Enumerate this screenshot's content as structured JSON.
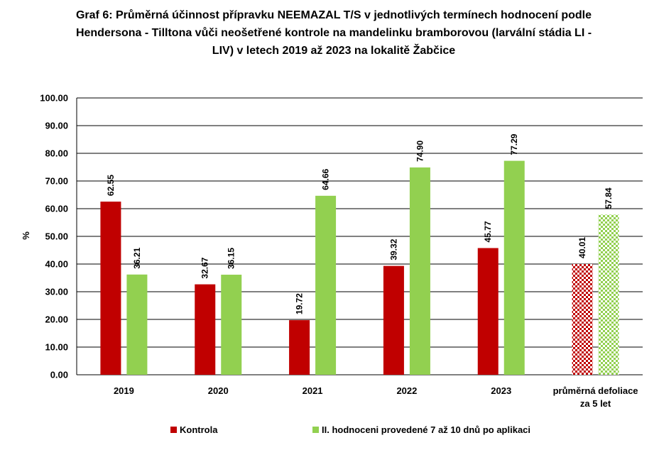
{
  "chart_data": {
    "type": "bar",
    "title_lines": [
      "Graf 6: Průměrná účinnost přípravku NEEMAZAL T/S v jednotlivých termínech hodnocení podle",
      "Hendersona - Tilltona vůči neošetřené kontrole na mandelinku bramborovou (larvální stádia LI -",
      "LIV) v letech 2019 až 2023 na lokalitě Žabčice"
    ],
    "ylabel": "%",
    "xlabel": "",
    "ylim": [
      0,
      100
    ],
    "yticks": [
      "0.00",
      "10.00",
      "20.00",
      "30.00",
      "40.00",
      "50.00",
      "60.00",
      "70.00",
      "80.00",
      "90.00",
      "100.00"
    ],
    "grid": true,
    "legend_position": "bottom",
    "categories": [
      {
        "lines": [
          "2019"
        ]
      },
      {
        "lines": [
          "2020"
        ]
      },
      {
        "lines": [
          "2021"
        ]
      },
      {
        "lines": [
          "2022"
        ]
      },
      {
        "lines": [
          "2023"
        ]
      },
      {
        "lines": [
          "průměrná defoliace",
          "za 5 let"
        ]
      }
    ],
    "series": [
      {
        "name": "Kontrola",
        "color": "#c00000",
        "values": [
          62.55,
          32.67,
          19.72,
          39.32,
          45.77,
          40.01
        ],
        "labels": [
          "62.55",
          "32.67",
          "19.72",
          "39.32",
          "45.77",
          "40.01"
        ]
      },
      {
        "name": "II. hodnoceni provedené 7 až 10 dnů po aplikaci",
        "color": "#92d050",
        "values": [
          36.21,
          36.15,
          64.66,
          74.9,
          77.29,
          57.84
        ],
        "labels": [
          "36.21",
          "36.15",
          "64.66",
          "74.90",
          "77.29",
          "57.84"
        ]
      }
    ],
    "patterned_category_index": 5
  }
}
